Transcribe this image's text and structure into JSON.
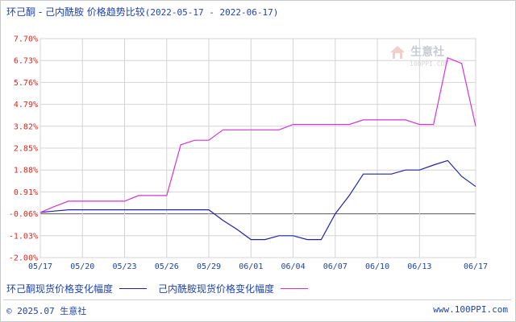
{
  "header": {
    "title": "环己酮 - 己内酰胺 价格趋势比较",
    "date_range": "(2022-05-17 - 2022-06-17)"
  },
  "watermark": {
    "text": "生意社",
    "sub": "100PPI.COM"
  },
  "legend": [
    {
      "label": "环己酮现货价格变化幅度",
      "color": "#2222aa"
    },
    {
      "label": "己内酰胺现货价格变化幅度",
      "color": "#d633d6"
    }
  ],
  "footer": {
    "copyright": "© 2025.07 生意社",
    "site": "www.100PPI.com"
  },
  "colors": {
    "axis_labels": "#e0241b",
    "text": "#1f43a8",
    "grid": "#cccccc"
  },
  "chart_data": {
    "type": "line",
    "ylim": [
      -2.0,
      7.7
    ],
    "yticks": [
      "7.70%",
      "6.73%",
      "5.76%",
      "4.79%",
      "3.82%",
      "2.85%",
      "1.88%",
      "0.91%",
      "-0.06%",
      "-1.03%",
      "-2.00%"
    ],
    "ytick_values": [
      7.7,
      6.73,
      5.76,
      4.79,
      3.82,
      2.85,
      1.88,
      0.91,
      -0.06,
      -1.03,
      -2.0
    ],
    "x": [
      "05/17",
      "05/18",
      "05/19",
      "05/20",
      "05/21",
      "05/22",
      "05/23",
      "05/24",
      "05/25",
      "05/26",
      "05/27",
      "05/28",
      "05/29",
      "05/30",
      "05/31",
      "06/01",
      "06/02",
      "06/03",
      "06/04",
      "06/05",
      "06/06",
      "06/07",
      "06/08",
      "06/09",
      "06/10",
      "06/11",
      "06/12",
      "06/13",
      "06/14",
      "06/15",
      "06/16",
      "06/17"
    ],
    "xtick_labels": [
      "05/17",
      "05/20",
      "05/23",
      "05/26",
      "05/29",
      "06/01",
      "06/04",
      "06/07",
      "06/10",
      "06/13",
      "06/17"
    ],
    "xtick_indices": [
      0,
      3,
      6,
      9,
      12,
      15,
      18,
      21,
      24,
      27,
      31
    ],
    "series": [
      {
        "name": "环己酮现货价格变化幅度",
        "color": "#2222aa",
        "values": [
          0.0,
          0.06,
          0.12,
          0.12,
          0.12,
          0.12,
          0.12,
          0.12,
          0.12,
          0.12,
          0.12,
          0.12,
          0.12,
          -0.35,
          -0.75,
          -1.2,
          -1.2,
          -1.03,
          -1.03,
          -1.2,
          -1.2,
          -0.06,
          0.75,
          1.7,
          1.7,
          1.7,
          1.88,
          1.88,
          2.1,
          2.3,
          1.6,
          1.15
        ]
      },
      {
        "name": "己内酰胺现货价格变化幅度",
        "color": "#d633d6",
        "values": [
          0.0,
          0.26,
          0.5,
          0.5,
          0.5,
          0.5,
          0.5,
          0.75,
          0.75,
          0.75,
          3.0,
          3.2,
          3.2,
          3.66,
          3.66,
          3.66,
          3.66,
          3.66,
          3.9,
          3.9,
          3.9,
          3.9,
          3.9,
          4.1,
          4.1,
          4.1,
          4.1,
          3.9,
          3.9,
          6.85,
          6.6,
          3.82
        ]
      }
    ]
  }
}
